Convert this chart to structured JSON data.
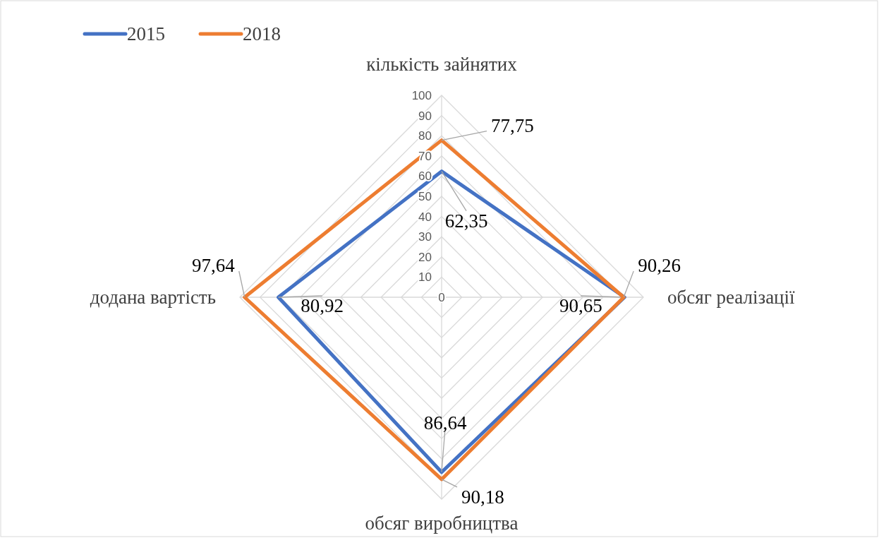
{
  "chart_data": {
    "type": "radar",
    "categories": [
      "кількість зайнятих",
      "обсяг реалізації",
      "обсяг виробництва",
      "додана вартість"
    ],
    "series": [
      {
        "name": "2015",
        "color": "#4472c4",
        "values": [
          62.35,
          90.65,
          86.64,
          80.92
        ],
        "value_labels": [
          "62,35",
          "90,65",
          "86,64",
          "80,92"
        ]
      },
      {
        "name": "2018",
        "color": "#ed7d31",
        "values": [
          77.75,
          90.26,
          90.18,
          97.64
        ],
        "value_labels": [
          "77,75",
          "90,26",
          "90,18",
          "97,64"
        ]
      }
    ],
    "ylim": [
      0,
      100
    ],
    "yticks": [
      0,
      10,
      20,
      30,
      40,
      50,
      60,
      70,
      80,
      90,
      100
    ],
    "grid": true,
    "legend": "top left",
    "marker": "none"
  }
}
